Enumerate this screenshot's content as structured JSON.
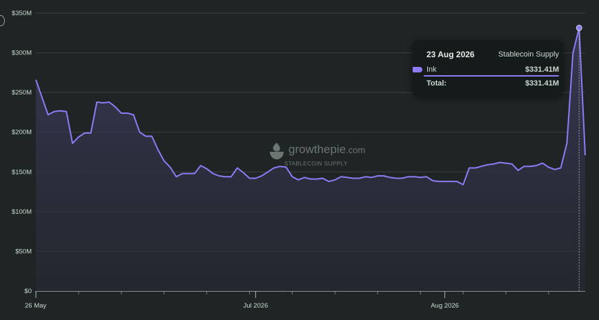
{
  "colors": {
    "background": "#1f2424",
    "series": "#8e7cf6",
    "area_top": "#3a3a5a",
    "grid": "#3c4242",
    "text": "#cdd8d3"
  },
  "chart_data": {
    "type": "area",
    "x_start": "2026-05-26",
    "x_end": "2026-08-24",
    "x_ticks": [
      {
        "date": "2026-05-26",
        "label": "26 May"
      },
      {
        "date": "2026-07-01",
        "label": "Jul 2026"
      },
      {
        "date": "2026-08-01",
        "label": "Aug 2026"
      }
    ],
    "ylim": [
      0,
      350
    ],
    "y_ticks": [
      {
        "value": 0,
        "label": "$0"
      },
      {
        "value": 50,
        "label": "$50M"
      },
      {
        "value": 100,
        "label": "$100M"
      },
      {
        "value": 150,
        "label": "$150M"
      },
      {
        "value": 200,
        "label": "$200M"
      },
      {
        "value": 250,
        "label": "$250M"
      },
      {
        "value": 300,
        "label": "$300M"
      },
      {
        "value": 350,
        "label": "$350M"
      }
    ],
    "grid": true,
    "series": [
      {
        "name": "Ink",
        "unit": "$M",
        "points": [
          [
            "2026-05-26",
            266
          ],
          [
            "2026-05-27",
            244
          ],
          [
            "2026-05-28",
            222
          ],
          [
            "2026-05-29",
            226
          ],
          [
            "2026-05-30",
            227
          ],
          [
            "2026-05-31",
            226
          ],
          [
            "2026-06-01",
            186
          ],
          [
            "2026-06-02",
            194
          ],
          [
            "2026-06-03",
            199
          ],
          [
            "2026-06-04",
            199
          ],
          [
            "2026-06-05",
            238
          ],
          [
            "2026-06-06",
            237
          ],
          [
            "2026-06-07",
            238
          ],
          [
            "2026-06-08",
            232
          ],
          [
            "2026-06-09",
            224
          ],
          [
            "2026-06-10",
            224
          ],
          [
            "2026-06-11",
            222
          ],
          [
            "2026-06-12",
            200
          ],
          [
            "2026-06-13",
            195
          ],
          [
            "2026-06-14",
            195
          ],
          [
            "2026-06-15",
            178
          ],
          [
            "2026-06-16",
            164
          ],
          [
            "2026-06-17",
            156
          ],
          [
            "2026-06-18",
            144
          ],
          [
            "2026-06-19",
            148
          ],
          [
            "2026-06-20",
            148
          ],
          [
            "2026-06-21",
            148
          ],
          [
            "2026-06-22",
            158
          ],
          [
            "2026-06-23",
            154
          ],
          [
            "2026-06-24",
            148
          ],
          [
            "2026-06-25",
            145
          ],
          [
            "2026-06-26",
            144
          ],
          [
            "2026-06-27",
            144
          ],
          [
            "2026-06-28",
            155
          ],
          [
            "2026-06-29",
            149
          ],
          [
            "2026-06-30",
            142
          ],
          [
            "2026-07-01",
            142
          ],
          [
            "2026-07-02",
            145
          ],
          [
            "2026-07-03",
            150
          ],
          [
            "2026-07-04",
            155
          ],
          [
            "2026-07-05",
            157
          ],
          [
            "2026-07-06",
            156
          ],
          [
            "2026-07-07",
            144
          ],
          [
            "2026-07-08",
            140
          ],
          [
            "2026-07-09",
            143
          ],
          [
            "2026-07-10",
            141
          ],
          [
            "2026-07-11",
            141
          ],
          [
            "2026-07-12",
            142
          ],
          [
            "2026-07-13",
            138
          ],
          [
            "2026-07-14",
            140
          ],
          [
            "2026-07-15",
            144
          ],
          [
            "2026-07-16",
            143
          ],
          [
            "2026-07-17",
            142
          ],
          [
            "2026-07-18",
            142
          ],
          [
            "2026-07-19",
            144
          ],
          [
            "2026-07-20",
            143
          ],
          [
            "2026-07-21",
            145
          ],
          [
            "2026-07-22",
            145
          ],
          [
            "2026-07-23",
            143
          ],
          [
            "2026-07-24",
            142
          ],
          [
            "2026-07-25",
            142
          ],
          [
            "2026-07-26",
            144
          ],
          [
            "2026-07-27",
            144
          ],
          [
            "2026-07-28",
            143
          ],
          [
            "2026-07-29",
            144
          ],
          [
            "2026-07-30",
            139
          ],
          [
            "2026-07-31",
            138
          ],
          [
            "2026-08-01",
            138
          ],
          [
            "2026-08-02",
            138
          ],
          [
            "2026-08-03",
            138
          ],
          [
            "2026-08-04",
            134
          ],
          [
            "2026-08-05",
            155
          ],
          [
            "2026-08-06",
            155
          ],
          [
            "2026-08-07",
            157
          ],
          [
            "2026-08-08",
            159
          ],
          [
            "2026-08-09",
            160
          ],
          [
            "2026-08-10",
            162
          ],
          [
            "2026-08-11",
            161
          ],
          [
            "2026-08-12",
            160
          ],
          [
            "2026-08-13",
            152
          ],
          [
            "2026-08-14",
            157
          ],
          [
            "2026-08-15",
            157
          ],
          [
            "2026-08-16",
            158
          ],
          [
            "2026-08-17",
            161
          ],
          [
            "2026-08-18",
            156
          ],
          [
            "2026-08-19",
            153
          ],
          [
            "2026-08-20",
            155
          ],
          [
            "2026-08-21",
            186
          ],
          [
            "2026-08-22",
            300
          ],
          [
            "2026-08-23",
            331.41
          ],
          [
            "2026-08-24",
            171
          ]
        ]
      }
    ],
    "highlight": {
      "date": "2026-08-23",
      "value": 331.41
    }
  },
  "tooltip": {
    "date": "23 Aug 2026",
    "metric": "Stablecoin Supply",
    "series_name": "Ink",
    "series_value": "$331.41M",
    "total_label": "Total:",
    "total_value": "$331.41M"
  },
  "watermark": {
    "brand": "growthepie",
    "brand_suffix": ".com",
    "subtitle": "STABLECOIN SUPPLY",
    "icon": "growthepie-logo-icon"
  },
  "edge_icon": "circle-icon"
}
